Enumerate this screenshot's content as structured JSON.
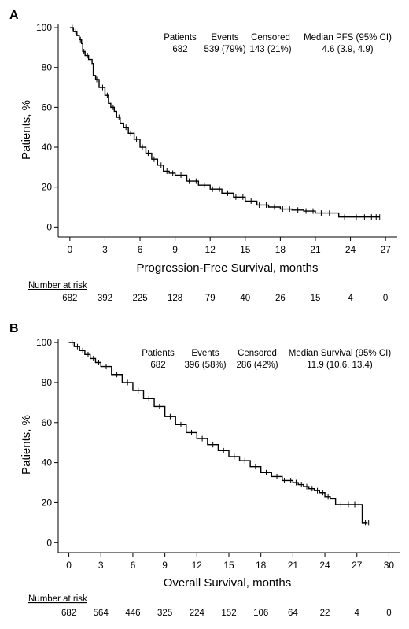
{
  "chart_data": [
    {
      "panel": "A",
      "type": "line",
      "ylabel": "Patients, %",
      "xlabel": "Progression-Free Survival, months",
      "xlim": [
        -1,
        28
      ],
      "ylim": [
        -5,
        102
      ],
      "x_ticks": [
        0,
        3,
        6,
        9,
        12,
        15,
        18,
        21,
        24,
        27
      ],
      "y_ticks": [
        0,
        20,
        40,
        60,
        80,
        100
      ],
      "grid": false,
      "stats": {
        "headers": [
          "Patients",
          "Events",
          "Censored",
          "Median PFS (95% CI)"
        ],
        "values": [
          "682",
          "539 (79%)",
          "143 (21%)",
          "4.6 (3.9, 4.9)"
        ]
      },
      "series": [
        {
          "x": [
            0,
            0.3,
            0.6,
            0.8,
            1.0,
            1.1,
            1.3,
            1.6,
            1.9,
            2.0,
            2.2,
            2.5,
            3.0,
            3.3,
            3.5,
            3.8,
            4.0,
            4.3,
            4.6,
            5.0,
            5.5,
            6.0,
            6.5,
            7.0,
            7.5,
            8.0,
            8.5,
            9.0,
            10.0,
            11.0,
            12.0,
            13.0,
            14.0,
            15.0,
            16.0,
            17.0,
            18.0,
            19.0,
            20.0,
            21.0,
            22.0,
            23.0,
            24.0,
            25.0,
            26.5
          ],
          "y": [
            100,
            98,
            96,
            94,
            92,
            88,
            86,
            84,
            82,
            76,
            74,
            70,
            66,
            62,
            60,
            58,
            55,
            52,
            50,
            47,
            44,
            40,
            37,
            34,
            31,
            28,
            27,
            26,
            23,
            21,
            19,
            17,
            15,
            13,
            11,
            10,
            9,
            8.5,
            8,
            7,
            7,
            5,
            5,
            5,
            5
          ]
        }
      ],
      "censor_marks": [
        0.2,
        0.5,
        0.9,
        1.2,
        1.5,
        2.3,
        2.8,
        3.2,
        3.7,
        4.2,
        4.8,
        5.2,
        5.7,
        6.2,
        6.7,
        7.2,
        7.8,
        8.3,
        8.8,
        9.5,
        10.2,
        10.8,
        11.5,
        12.2,
        12.8,
        13.5,
        14.2,
        14.8,
        15.5,
        16.2,
        16.8,
        17.5,
        18.2,
        18.8,
        19.5,
        20.2,
        20.8,
        21.5,
        22.2,
        23.5,
        24.5,
        25.2,
        25.8,
        26.2,
        26.5
      ],
      "risk_table": {
        "title": "Number at risk",
        "values": [
          "682",
          "392",
          "225",
          "128",
          "79",
          "40",
          "26",
          "15",
          "4",
          "0"
        ]
      }
    },
    {
      "panel": "B",
      "type": "line",
      "ylabel": "Patients, %",
      "xlabel": "Overall Survival, months",
      "xlim": [
        -1,
        31
      ],
      "ylim": [
        -5,
        102
      ],
      "x_ticks": [
        0,
        3,
        6,
        9,
        12,
        15,
        18,
        21,
        24,
        27,
        30
      ],
      "y_ticks": [
        0,
        20,
        40,
        60,
        80,
        100
      ],
      "grid": false,
      "stats": {
        "headers": [
          "Patients",
          "Events",
          "Censored",
          "Median Survival (95% CI)"
        ],
        "values": [
          "682",
          "396 (58%)",
          "286 (42%)",
          "11.9 (10.6, 13.4)"
        ]
      },
      "series": [
        {
          "x": [
            0,
            0.5,
            1,
            1.5,
            2,
            2.5,
            3,
            4,
            5,
            6,
            7,
            8,
            9,
            10,
            11,
            12,
            13,
            14,
            15,
            16,
            17,
            18,
            19,
            20,
            21,
            21.5,
            22,
            22.5,
            23,
            23.5,
            24,
            24.5,
            25,
            26,
            27,
            27.5,
            27.5,
            28
          ],
          "y": [
            100,
            98,
            96,
            94,
            92,
            90,
            88,
            84,
            80,
            76,
            72,
            68,
            63,
            59,
            55,
            52,
            49,
            46,
            43,
            41,
            38,
            35,
            33,
            31,
            30,
            29,
            28,
            27,
            26,
            25,
            23,
            22,
            19,
            19,
            19,
            19,
            10,
            10
          ]
        }
      ],
      "censor_marks": [
        0.3,
        0.8,
        1.3,
        1.8,
        2.3,
        2.8,
        3.5,
        4.5,
        5.5,
        6.5,
        7.5,
        8.5,
        9.5,
        10.5,
        11.5,
        12.5,
        13.5,
        14.5,
        15.5,
        16.5,
        17.5,
        18.5,
        19.5,
        20.2,
        20.8,
        21.3,
        21.8,
        22.3,
        22.8,
        23.3,
        23.8,
        24.3,
        25.5,
        26.2,
        26.8,
        27.2,
        27.8,
        28.1
      ],
      "risk_table": {
        "title": "Number at risk",
        "values": [
          "682",
          "564",
          "446",
          "325",
          "224",
          "152",
          "106",
          "64",
          "22",
          "4",
          "0"
        ]
      }
    }
  ],
  "colors": {
    "line": "#000000",
    "axis": "#000000",
    "background": "#ffffff"
  }
}
